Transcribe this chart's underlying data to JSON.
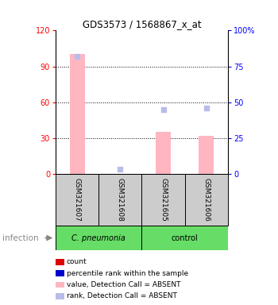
{
  "title": "GDS3573 / 1568867_x_at",
  "samples": [
    "GSM321607",
    "GSM321608",
    "GSM321605",
    "GSM321606"
  ],
  "bar_values_absent": [
    100,
    0,
    35,
    32
  ],
  "rank_values_absent": [
    82,
    3,
    45,
    46
  ],
  "ylim_left": [
    0,
    120
  ],
  "ylim_right": [
    0,
    100
  ],
  "yticks_left": [
    0,
    30,
    60,
    90,
    120
  ],
  "yticks_right": [
    0,
    25,
    50,
    75,
    100
  ],
  "group_label": "infection",
  "group1_label": "C. pneumonia",
  "group2_label": "control",
  "group_color": "#66dd66",
  "bar_color_absent": "#ffb6c1",
  "rank_color_absent": "#b8bce8",
  "sample_box_color": "#cccccc",
  "legend_items": [
    {
      "label": "count",
      "color": "#dd0000"
    },
    {
      "label": "percentile rank within the sample",
      "color": "#0000cc"
    },
    {
      "label": "value, Detection Call = ABSENT",
      "color": "#ffb6c1"
    },
    {
      "label": "rank, Detection Call = ABSENT",
      "color": "#b8bce8"
    }
  ]
}
